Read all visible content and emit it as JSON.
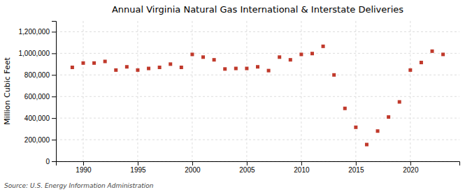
{
  "chart_data": {
    "type": "scatter",
    "title": "Annual Virginia Natural Gas International & Interstate Deliveries",
    "y_label": "Million Cubic Feet",
    "annotations": [
      "Source: U.S. Energy Information Administration"
    ],
    "x": [
      1989,
      1990,
      1991,
      1992,
      1993,
      1994,
      1995,
      1996,
      1997,
      1998,
      1999,
      2000,
      2001,
      2002,
      2003,
      2004,
      2005,
      2006,
      2007,
      2008,
      2009,
      2010,
      2011,
      2012,
      2013,
      2014,
      2015,
      2016,
      2017,
      2018,
      2019,
      2020,
      2021,
      2022,
      2023
    ],
    "values": [
      870000,
      910000,
      910000,
      925000,
      845000,
      875000,
      845000,
      860000,
      870000,
      900000,
      870000,
      990000,
      965000,
      940000,
      855000,
      860000,
      860000,
      875000,
      840000,
      965000,
      940000,
      990000,
      998000,
      1065000,
      800000,
      490000,
      315000,
      155000,
      280000,
      410000,
      550000,
      845000,
      915000,
      1020000,
      990000
    ],
    "color": "#c0392b",
    "marker": "square",
    "xlim": [
      1987.5,
      2024.5
    ],
    "xticks": [
      1990,
      1995,
      2000,
      2005,
      2010,
      2015,
      2020
    ],
    "ylim": [
      0,
      1300000
    ],
    "yticks": [
      0,
      {
        "value": 200000,
        "label": "200,000"
      },
      {
        "value": 400000,
        "label": "400,000"
      },
      {
        "value": 600000,
        "label": "600,000"
      },
      {
        "value": 800000,
        "label": "800,000"
      },
      {
        "value": 1000000,
        "label": "1,000,000"
      },
      {
        "value": 1200000,
        "label": "1,200,000"
      }
    ],
    "grid": true
  }
}
